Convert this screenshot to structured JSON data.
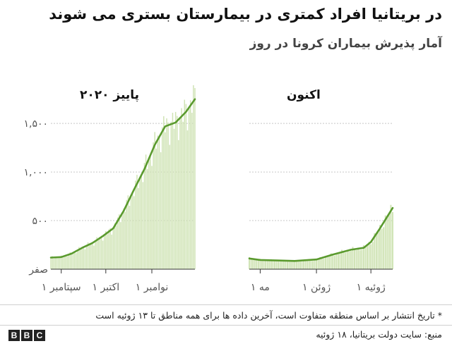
{
  "header": {
    "title": "در بریتانیا افراد کمتری در بیمارستان بستری می شوند",
    "subtitle": "آمار پذیرش بیماران کرونا در روز"
  },
  "footer": {
    "note": "* تاریخ انتشار بر اساس منطقه متفاوت است، آخرین داده ها برای همه مناطق تا ۱۳ ژوئیه است",
    "source": "منبع: سایت دولت بریتانیا، ۱۸ ژوئیه",
    "logo_letters": [
      "B",
      "B",
      "C"
    ]
  },
  "colors": {
    "line": "#5a9a2e",
    "bars": "#cfe3b4",
    "grid": "#c8c8c8",
    "axis": "#333333",
    "text": "#222222"
  },
  "chart_data": [
    {
      "type": "area",
      "panel_title": "پاییز ۲۰۲۰",
      "ylim": [
        0,
        1900
      ],
      "yticks": [
        0,
        500,
        1000,
        1500
      ],
      "ytick_labels": [
        "صفر",
        "۵۰۰",
        "۱,۰۰۰",
        "۱,۵۰۰"
      ],
      "x_start": "2020-08-25",
      "x_end": "2020-11-30",
      "xticks": [
        {
          "date": "2020-09-01",
          "label": "۱ سپتامبر"
        },
        {
          "date": "2020-10-01",
          "label": "۱ اکتبر"
        },
        {
          "date": "2020-11-01",
          "label": "۱ نوامبر"
        }
      ],
      "bar_series": "daily admissions",
      "line_series": "7-day average",
      "line_points": [
        {
          "date": "2020-08-25",
          "value": 120
        },
        {
          "date": "2020-09-01",
          "value": 125
        },
        {
          "date": "2020-09-08",
          "value": 160
        },
        {
          "date": "2020-09-15",
          "value": 220
        },
        {
          "date": "2020-09-22",
          "value": 270
        },
        {
          "date": "2020-09-29",
          "value": 340
        },
        {
          "date": "2020-10-06",
          "value": 420
        },
        {
          "date": "2020-10-13",
          "value": 600
        },
        {
          "date": "2020-10-20",
          "value": 820
        },
        {
          "date": "2020-10-27",
          "value": 1030
        },
        {
          "date": "2020-11-03",
          "value": 1280
        },
        {
          "date": "2020-11-10",
          "value": 1470
        },
        {
          "date": "2020-11-17",
          "value": 1510
        },
        {
          "date": "2020-11-24",
          "value": 1620
        },
        {
          "date": "2020-11-30",
          "value": 1750
        }
      ]
    },
    {
      "type": "area",
      "panel_title": "اکنون",
      "ylim": [
        0,
        1900
      ],
      "yticks": [
        0,
        500,
        1000,
        1500
      ],
      "x_start": "2021-04-25",
      "x_end": "2021-07-13",
      "xticks": [
        {
          "date": "2021-05-01",
          "label": "۱ مه"
        },
        {
          "date": "2021-06-01",
          "label": "۱ ژوئن"
        },
        {
          "date": "2021-07-01",
          "label": "۱ ژوئیه"
        }
      ],
      "bar_series": "daily admissions",
      "line_series": "7-day average",
      "line_points": [
        {
          "date": "2021-04-25",
          "value": 110
        },
        {
          "date": "2021-05-01",
          "value": 95
        },
        {
          "date": "2021-05-10",
          "value": 90
        },
        {
          "date": "2021-05-20",
          "value": 85
        },
        {
          "date": "2021-06-01",
          "value": 100
        },
        {
          "date": "2021-06-10",
          "value": 150
        },
        {
          "date": "2021-06-20",
          "value": 200
        },
        {
          "date": "2021-06-27",
          "value": 220
        },
        {
          "date": "2021-07-01",
          "value": 280
        },
        {
          "date": "2021-07-06",
          "value": 420
        },
        {
          "date": "2021-07-13",
          "value": 630
        }
      ]
    }
  ]
}
